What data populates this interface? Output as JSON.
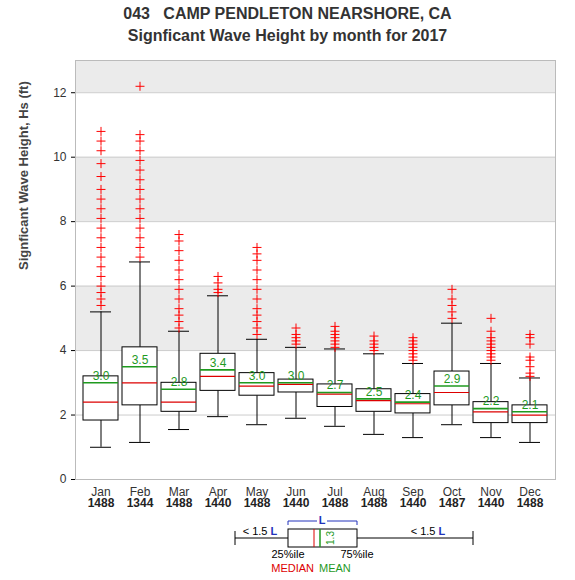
{
  "chart_data": {
    "type": "box",
    "title": "043   CAMP PENDLETON NEARSHORE, CA",
    "subtitle": "Signficant Wave Height by month for 2017",
    "y_label": "Signficant Wave Height, Hs (ft)",
    "categories": [
      "Jan",
      "Feb",
      "Mar",
      "Apr",
      "May",
      "Jun",
      "Jul",
      "Aug",
      "Sep",
      "Oct",
      "Nov",
      "Dec"
    ],
    "counts": [
      1488,
      1344,
      1488,
      1440,
      1488,
      1440,
      1488,
      1488,
      1440,
      1487,
      1440,
      1488
    ],
    "whisker_low": [
      1.0,
      1.15,
      1.55,
      1.95,
      1.7,
      1.9,
      1.65,
      1.4,
      1.3,
      1.7,
      1.3,
      1.15
    ],
    "q1": [
      1.83,
      2.3,
      2.1,
      2.75,
      2.6,
      2.7,
      2.25,
      2.1,
      2.05,
      2.3,
      1.75,
      1.75
    ],
    "q3": [
      3.2,
      4.1,
      3.0,
      3.9,
      3.3,
      3.1,
      2.95,
      2.8,
      2.65,
      3.35,
      2.4,
      2.3
    ],
    "whisker_high": [
      5.2,
      6.75,
      4.6,
      5.7,
      4.35,
      4.1,
      4.05,
      3.9,
      3.6,
      4.85,
      3.6,
      3.15
    ],
    "color": "#000000",
    "series": [
      {
        "name": "MEDIAN",
        "color": "#dd0000",
        "values": [
          2.4,
          3.0,
          2.4,
          3.2,
          2.9,
          2.95,
          2.65,
          2.45,
          2.35,
          2.7,
          2.1,
          2.0
        ]
      },
      {
        "name": "MEAN",
        "color": "#1f9a1f",
        "values": [
          3.0,
          3.5,
          2.8,
          3.4,
          3.0,
          3.0,
          2.7,
          2.5,
          2.4,
          2.9,
          2.2,
          2.1
        ],
        "value_labels": [
          "3.0",
          "3.5",
          "2.8",
          "3.4",
          "3.0",
          "3.0",
          "2.7",
          "2.5",
          "2.4",
          "2.9",
          "2.2",
          "2.1"
        ]
      }
    ],
    "outliers": {
      "color": "#ff0000",
      "marker": "plus",
      "values": [
        [
          5.4,
          5.6,
          5.8,
          6.0,
          6.3,
          6.6,
          6.9,
          7.2,
          7.5,
          7.8,
          8.1,
          8.4,
          8.7,
          9.0,
          9.4,
          9.8,
          10.2,
          10.5,
          10.8
        ],
        [
          6.9,
          7.2,
          7.5,
          7.8,
          8.1,
          8.4,
          8.7,
          9.0,
          9.3,
          9.6,
          9.9,
          10.2,
          10.5,
          10.7,
          12.2
        ],
        [
          4.7,
          4.9,
          5.1,
          5.3,
          5.6,
          5.9,
          6.2,
          6.5,
          6.8,
          7.1,
          7.4,
          7.6
        ],
        [
          5.8,
          5.9,
          6.1,
          6.3
        ],
        [
          4.5,
          4.7,
          4.9,
          5.1,
          5.3,
          5.6,
          5.9,
          6.2,
          6.5,
          6.8,
          7.0,
          7.2
        ],
        [
          4.2,
          4.3,
          4.4,
          4.5,
          4.7
        ],
        [
          4.1,
          4.2,
          4.3,
          4.4,
          4.5,
          4.6,
          4.75
        ],
        [
          4.0,
          4.1,
          4.2,
          4.3,
          4.45
        ],
        [
          3.7,
          3.8,
          3.9,
          4.0,
          4.1,
          4.2,
          4.3,
          4.4
        ],
        [
          5.0,
          5.2,
          5.4,
          5.6,
          5.9
        ],
        [
          3.7,
          3.8,
          3.9,
          4.0,
          4.1,
          4.2,
          4.3,
          4.4,
          4.6,
          5.0
        ],
        [
          3.2,
          3.3,
          3.5,
          3.7,
          3.8,
          4.2,
          4.4,
          4.5
        ]
      ]
    },
    "ylim": [
      0,
      13
    ],
    "yticks": [
      0,
      2,
      4,
      6,
      8,
      10,
      12
    ],
    "grid": true,
    "data_labels": true,
    "box_key": {
      "span_label": "L",
      "whisker_label": "< 1.5",
      "q1_label": "25%ile",
      "q3_label": "75%ile",
      "median_label": "MEDIAN",
      "mean_label": "MEAN",
      "mean_value": "1.3"
    }
  }
}
